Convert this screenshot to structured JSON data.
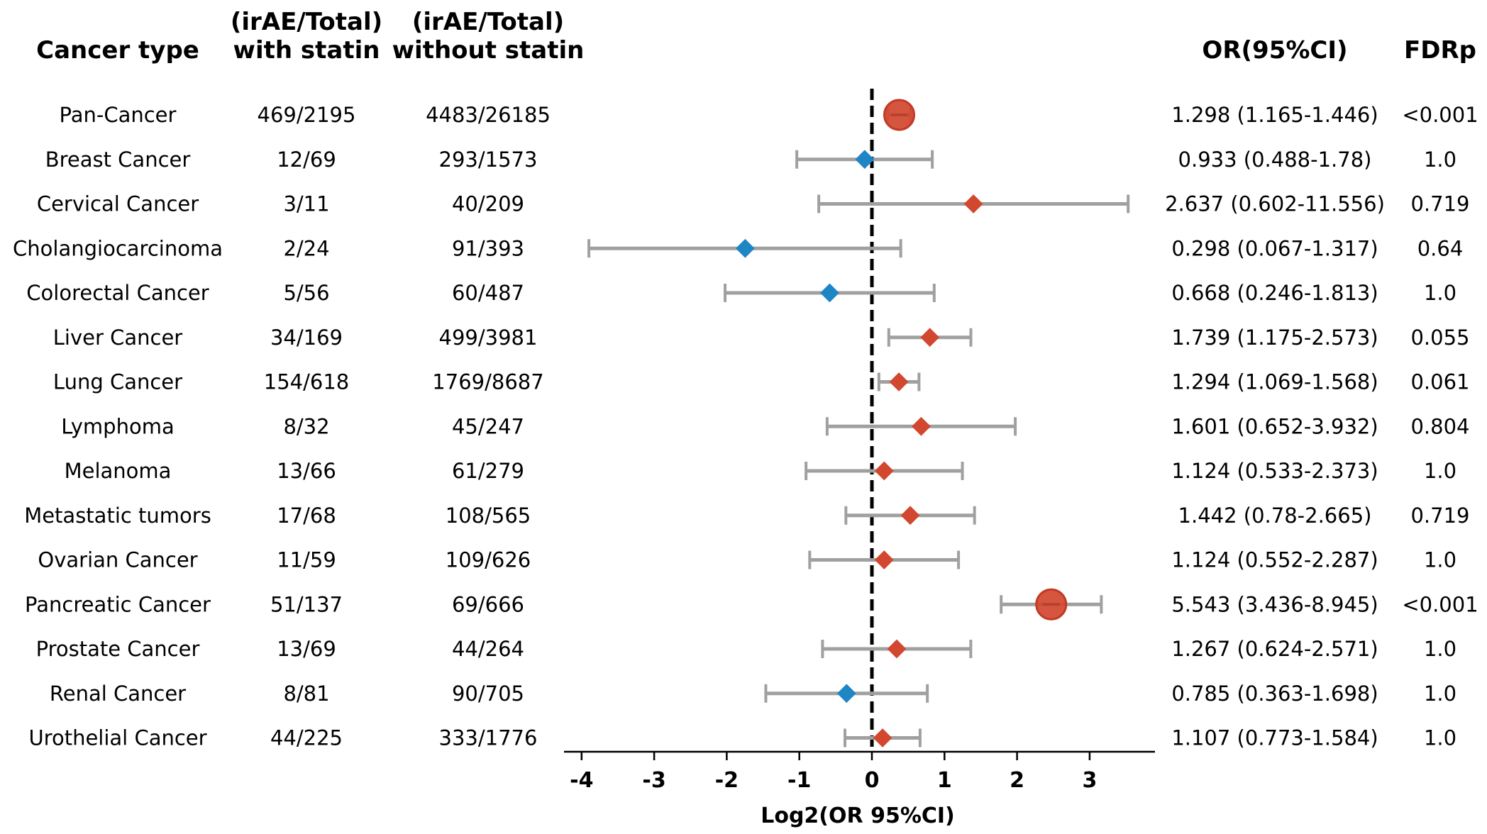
{
  "headers": {
    "cancer_type": "Cancer type",
    "with_statin": [
      "(irAE/Total)",
      "with statin"
    ],
    "without_statin": [
      "(irAE/Total)",
      "without statin"
    ],
    "or_ci": "OR(95%CI)",
    "fdrp": "FDRp"
  },
  "colors": {
    "risk": "#d2472f",
    "protective": "#1f86c5",
    "errorbar": "#a0a0a0",
    "refline": "#000000"
  },
  "chart_data": {
    "type": "forest",
    "xlabel": "Log2(OR 95%CI)",
    "xlim": [
      -4.3,
      3.9
    ],
    "xticks": [
      -4,
      -3,
      -2,
      -1,
      0,
      1,
      2,
      3
    ],
    "xtick_labels": [
      "-4",
      "-3",
      "-2",
      "-1",
      "0",
      "1",
      "2",
      "3"
    ],
    "reference_line": 0,
    "rows": [
      {
        "cancer": "Pan-Cancer",
        "with_statin": "469/2195",
        "without_statin": "4483/26185",
        "or_text": "1.298 (1.165-1.446)",
        "fdr_text": "<0.001",
        "or": 1.298,
        "lo": 1.165,
        "hi": 1.446,
        "significant": true
      },
      {
        "cancer": "Breast Cancer",
        "with_statin": "12/69",
        "without_statin": "293/1573",
        "or_text": "0.933 (0.488-1.78)",
        "fdr_text": "1.0",
        "or": 0.933,
        "lo": 0.488,
        "hi": 1.78,
        "significant": false
      },
      {
        "cancer": "Cervical Cancer",
        "with_statin": "3/11",
        "without_statin": "40/209",
        "or_text": "2.637 (0.602-11.556)",
        "fdr_text": "0.719",
        "or": 2.637,
        "lo": 0.602,
        "hi": 11.556,
        "significant": false
      },
      {
        "cancer": "Cholangiocarcinoma",
        "with_statin": "2/24",
        "without_statin": "91/393",
        "or_text": "0.298 (0.067-1.317)",
        "fdr_text": "0.64",
        "or": 0.298,
        "lo": 0.067,
        "hi": 1.317,
        "significant": false
      },
      {
        "cancer": "Colorectal Cancer",
        "with_statin": "5/56",
        "without_statin": "60/487",
        "or_text": "0.668 (0.246-1.813)",
        "fdr_text": "1.0",
        "or": 0.668,
        "lo": 0.246,
        "hi": 1.813,
        "significant": false
      },
      {
        "cancer": "Liver Cancer",
        "with_statin": "34/169",
        "without_statin": "499/3981",
        "or_text": "1.739 (1.175-2.573)",
        "fdr_text": "0.055",
        "or": 1.739,
        "lo": 1.175,
        "hi": 2.573,
        "significant": false
      },
      {
        "cancer": "Lung Cancer",
        "with_statin": "154/618",
        "without_statin": "1769/8687",
        "or_text": "1.294 (1.069-1.568)",
        "fdr_text": "0.061",
        "or": 1.294,
        "lo": 1.069,
        "hi": 1.568,
        "significant": false
      },
      {
        "cancer": "Lymphoma",
        "with_statin": "8/32",
        "without_statin": "45/247",
        "or_text": "1.601 (0.652-3.932)",
        "fdr_text": "0.804",
        "or": 1.601,
        "lo": 0.652,
        "hi": 3.932,
        "significant": false
      },
      {
        "cancer": "Melanoma",
        "with_statin": "13/66",
        "without_statin": "61/279",
        "or_text": "1.124 (0.533-2.373)",
        "fdr_text": "1.0",
        "or": 1.124,
        "lo": 0.533,
        "hi": 2.373,
        "significant": false
      },
      {
        "cancer": "Metastatic tumors",
        "with_statin": "17/68",
        "without_statin": "108/565",
        "or_text": "1.442 (0.78-2.665)",
        "fdr_text": "0.719",
        "or": 1.442,
        "lo": 0.78,
        "hi": 2.665,
        "significant": false
      },
      {
        "cancer": "Ovarian Cancer",
        "with_statin": "11/59",
        "without_statin": "109/626",
        "or_text": "1.124 (0.552-2.287)",
        "fdr_text": "1.0",
        "or": 1.124,
        "lo": 0.552,
        "hi": 2.287,
        "significant": false
      },
      {
        "cancer": "Pancreatic Cancer",
        "with_statin": "51/137",
        "without_statin": "69/666",
        "or_text": "5.543 (3.436-8.945)",
        "fdr_text": "<0.001",
        "or": 5.543,
        "lo": 3.436,
        "hi": 8.945,
        "significant": true
      },
      {
        "cancer": "Prostate Cancer",
        "with_statin": "13/69",
        "without_statin": "44/264",
        "or_text": "1.267 (0.624-2.571)",
        "fdr_text": "1.0",
        "or": 1.267,
        "lo": 0.624,
        "hi": 2.571,
        "significant": false
      },
      {
        "cancer": "Renal Cancer",
        "with_statin": "8/81",
        "without_statin": "90/705",
        "or_text": "0.785 (0.363-1.698)",
        "fdr_text": "1.0",
        "or": 0.785,
        "lo": 0.363,
        "hi": 1.698,
        "significant": false
      },
      {
        "cancer": "Urothelial Cancer",
        "with_statin": "44/225",
        "without_statin": "333/1776",
        "or_text": "1.107 (0.773-1.584)",
        "fdr_text": "1.0",
        "or": 1.107,
        "lo": 0.773,
        "hi": 1.584,
        "significant": false
      }
    ]
  }
}
